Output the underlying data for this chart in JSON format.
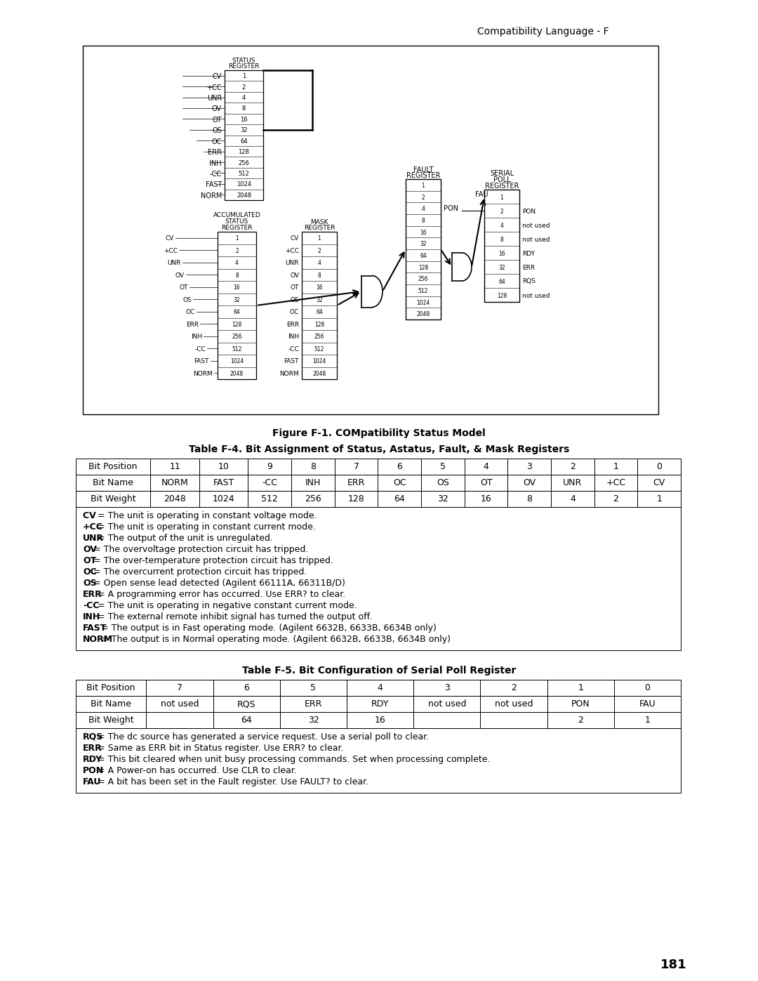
{
  "page_header": "Compatibility Language - F",
  "figure_caption": "Figure F-1. COMpatibility Status Model",
  "table4_title": "Table F-4. Bit Assignment of Status, Astatus, Fault, & Mask Registers",
  "table4_headers": [
    "Bit Position",
    "11",
    "10",
    "9",
    "8",
    "7",
    "6",
    "5",
    "4",
    "3",
    "2",
    "1",
    "0"
  ],
  "table4_row1": [
    "Bit Name",
    "NORM",
    "FAST",
    "-CC",
    "INH",
    "ERR",
    "OC",
    "OS",
    "OT",
    "OV",
    "UNR",
    "+CC",
    "CV"
  ],
  "table4_row2": [
    "Bit Weight",
    "2048",
    "1024",
    "512",
    "256",
    "128",
    "64",
    "32",
    "16",
    "8",
    "4",
    "2",
    "1"
  ],
  "table4_notes": [
    "CV  = The unit is operating in constant voltage mode.",
    "+CC = The unit is operating in constant current mode.",
    "UNR = The output of the unit is unregulated.",
    "OV = The overvoltage protection circuit has tripped.",
    "OT = The over-temperature protection circuit has tripped.",
    "OC = The overcurrent protection circuit has tripped.",
    "OS = Open sense lead detected (Agilent 66111A, 66311B/D)",
    "ERR = A programming error has occurred. Use ERR? to clear.",
    "-CC = The unit is operating in negative constant current mode.",
    "INH = The external remote inhibit signal has turned the output off.",
    "FAST = The output is in Fast operating mode. (Agilent 6632B, 6633B, 6634B only)",
    "NORM = The output is in Normal operating mode. (Agilent 6632B, 6633B, 6634B only)"
  ],
  "table5_title": "Table F-5. Bit Configuration of Serial Poll Register",
  "table5_headers": [
    "Bit Position",
    "7",
    "6",
    "5",
    "4",
    "3",
    "2",
    "1",
    "0"
  ],
  "table5_row1": [
    "Bit Name",
    "not used",
    "RQS",
    "ERR",
    "RDY",
    "not used",
    "not used",
    "PON",
    "FAU"
  ],
  "table5_row2": [
    "Bit Weight",
    "",
    "64",
    "32",
    "16",
    "",
    "",
    "2",
    "1"
  ],
  "table5_notes": [
    "RQS = The dc source has generated a service request. Use a serial poll to clear.",
    "ERR = Same as ERR bit in Status register. Use ERR? to clear.",
    "RDY = This bit cleared when unit busy processing commands. Set when processing complete.",
    "PON = A Power-on has occurred. Use CLR to clear.",
    "FAU = A bit has been set in the Fault register. Use FAULT? to clear."
  ],
  "page_number": "181",
  "bg_color": "#ffffff"
}
